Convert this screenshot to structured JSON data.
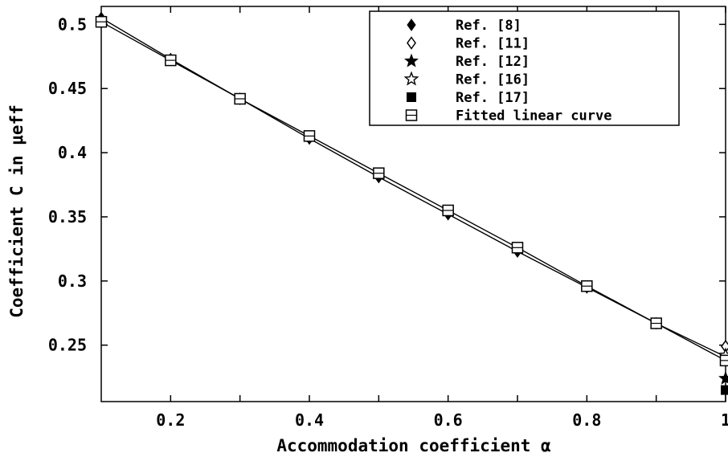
{
  "chart_data": {
    "type": "line",
    "xlabel": "Accommodation coefficient α",
    "ylabel": "Coefficient C in μeff",
    "xlim": [
      0.1,
      1.0
    ],
    "ylim": [
      0.206,
      0.514
    ],
    "xticks": [
      "0.2",
      "0.4",
      "0.6",
      "0.8",
      "1"
    ],
    "yticks": [
      "0.25",
      "0.3",
      "0.35",
      "0.4",
      "0.45",
      "0.5"
    ],
    "legend_position": "top-right",
    "series": [
      {
        "name": "Ref. [8]",
        "marker": "diamond-filled",
        "line": true,
        "x": [
          0.1,
          0.2,
          0.3,
          0.4,
          0.5,
          0.6,
          0.7,
          0.8,
          0.9,
          1.0
        ],
        "y": [
          0.505,
          0.473,
          0.442,
          0.411,
          0.381,
          0.352,
          0.323,
          0.295,
          0.267,
          0.241
        ]
      },
      {
        "name": "Ref. [11]",
        "marker": "diamond-open",
        "line": false,
        "x": [
          1.0
        ],
        "y": [
          0.249
        ]
      },
      {
        "name": "Ref. [12]",
        "marker": "star-filled",
        "line": false,
        "x": [
          1.0
        ],
        "y": [
          0.224
        ]
      },
      {
        "name": "Ref. [16]",
        "marker": "star-open",
        "line": false,
        "x": [
          1.0
        ],
        "y": [
          0.242
        ]
      },
      {
        "name": "Ref. [17]",
        "marker": "square-filled",
        "line": false,
        "x": [
          1.0
        ],
        "y": [
          0.215
        ]
      },
      {
        "name": "Fitted linear curve",
        "marker": "square-open-cross",
        "line": true,
        "x": [
          0.1,
          0.2,
          0.3,
          0.4,
          0.5,
          0.6,
          0.7,
          0.8,
          0.9,
          1.0
        ],
        "y": [
          0.502,
          0.472,
          0.442,
          0.413,
          0.384,
          0.355,
          0.326,
          0.296,
          0.267,
          0.238
        ]
      }
    ]
  }
}
